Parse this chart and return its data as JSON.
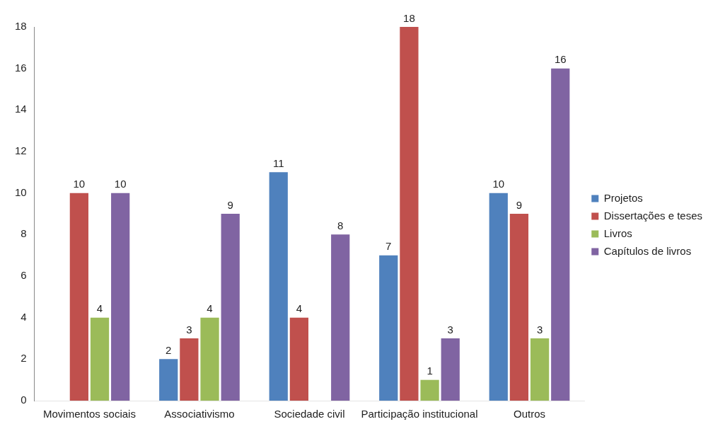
{
  "chart_data": {
    "type": "bar",
    "categories": [
      "Movimentos sociais",
      "Associativismo",
      "Sociedade civil",
      "Participação institucional",
      "Outros"
    ],
    "series": [
      {
        "name": "Projetos",
        "color": "#4f81bd",
        "values": [
          0,
          2,
          11,
          7,
          10
        ],
        "value_labels": [
          null,
          "2",
          "11",
          "7",
          "10"
        ]
      },
      {
        "name": "Dissertações e teses",
        "color": "#c0504d",
        "values": [
          10,
          3,
          4,
          18,
          9
        ],
        "value_labels": [
          "10",
          "3",
          "4",
          "18",
          "9"
        ]
      },
      {
        "name": "Livros",
        "color": "#9bbb59",
        "values": [
          4,
          4,
          0,
          1,
          3
        ],
        "value_labels": [
          "4",
          "4",
          null,
          "1",
          "3"
        ]
      },
      {
        "name": "Capítulos de livros",
        "color": "#8064a2",
        "values": [
          10,
          9,
          8,
          3,
          16
        ],
        "value_labels": [
          "10",
          "9",
          "8",
          "3",
          "16"
        ]
      }
    ],
    "ylim": [
      0,
      18
    ],
    "yticks": [
      0,
      2,
      4,
      6,
      8,
      10,
      12,
      14,
      16,
      18
    ],
    "grid": false,
    "legend": "right"
  }
}
